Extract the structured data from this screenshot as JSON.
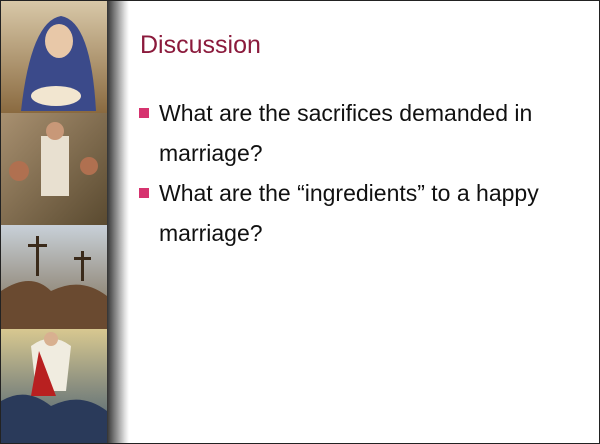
{
  "slide": {
    "title": "Discussion",
    "bullets": [
      "What are the sacrifices demanded in marriage?",
      "What are the “ingredients” to a happy marriage?"
    ]
  }
}
